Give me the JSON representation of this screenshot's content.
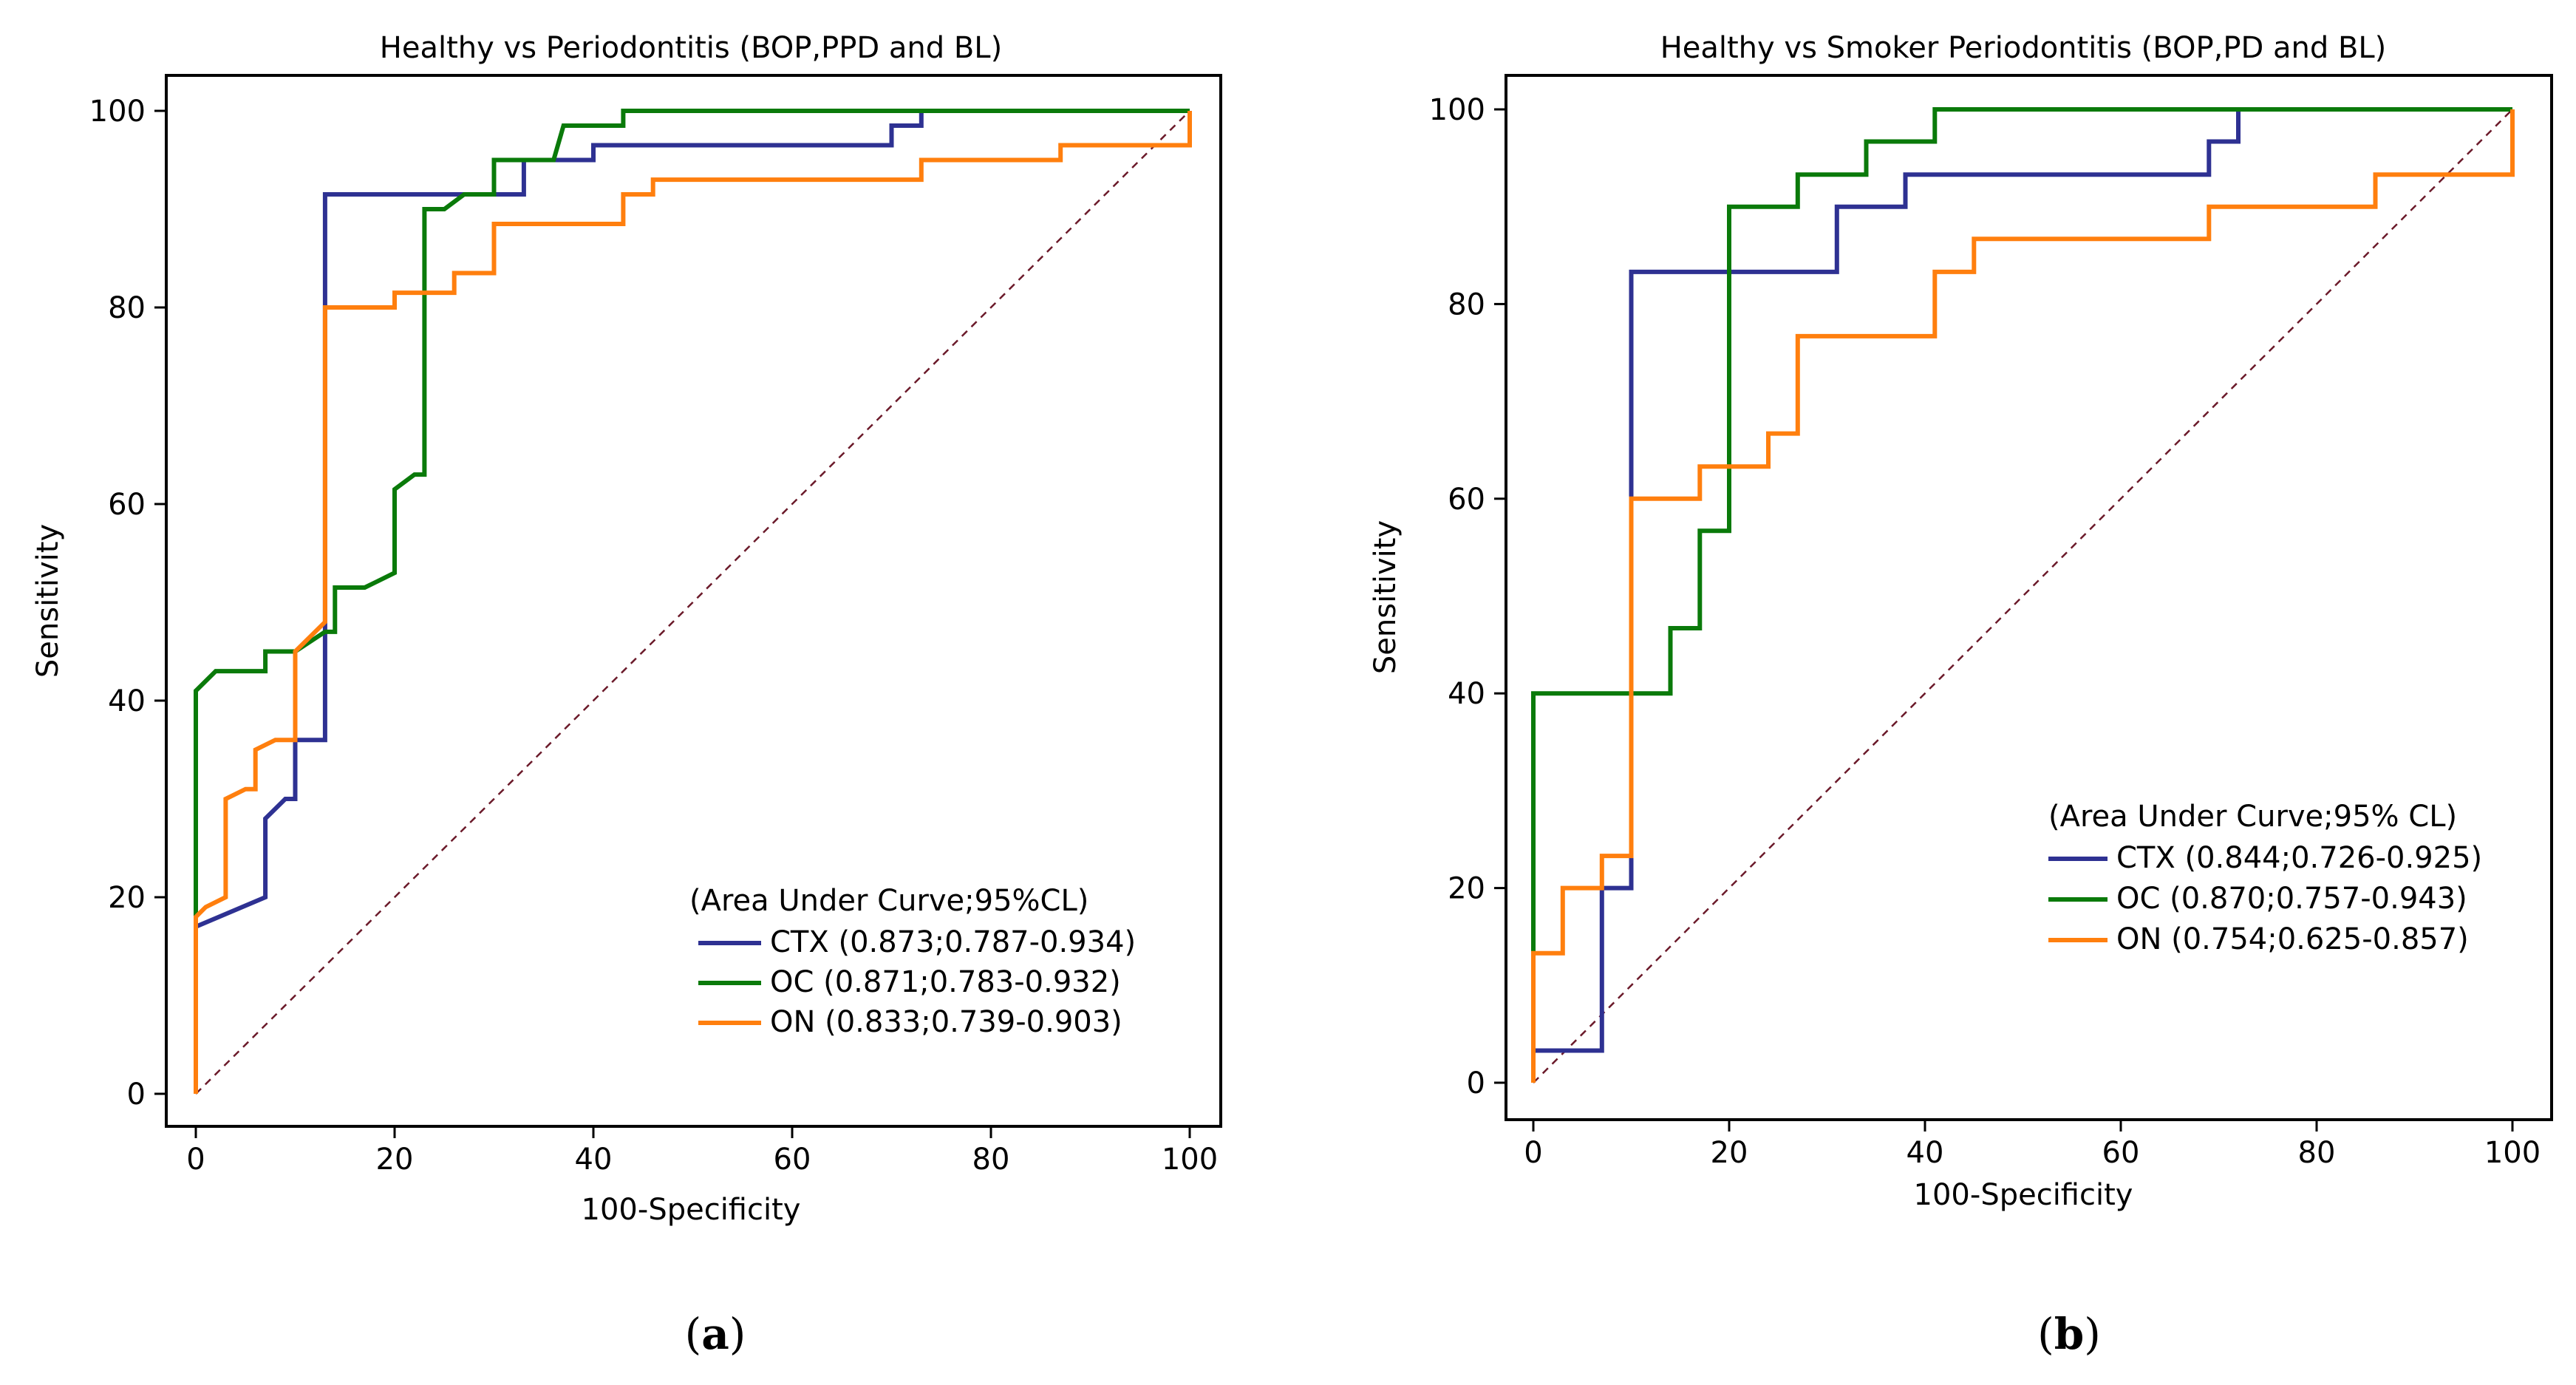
{
  "chart_data": [
    {
      "type": "line",
      "caption": {
        "open": "(",
        "letter": "a",
        "close": ")"
      },
      "title": "Healthy vs Periodontitis (BOP,PPD and BL)",
      "xlabel": "100-Specificity",
      "ylabel": "Sensitivity",
      "xlim": [
        0,
        100
      ],
      "ylim": [
        0,
        100
      ],
      "xticks": [
        "0",
        "20",
        "40",
        "60",
        "80",
        "100"
      ],
      "yticks": [
        "0",
        "20",
        "40",
        "60",
        "80",
        "100"
      ],
      "diagonal": true,
      "legend_title": "(Area Under Curve;95%CL)",
      "legend_position": "bottom-right",
      "series": [
        {
          "name": "CTX (0.873;0.787-0.934)",
          "color": "#2e3192",
          "points": [
            [
              0,
              16
            ],
            [
              0,
              17
            ],
            [
              7,
              20
            ],
            [
              7,
              28
            ],
            [
              9,
              30
            ],
            [
              10,
              30
            ],
            [
              10,
              36
            ],
            [
              13,
              36
            ],
            [
              13,
              91.5
            ],
            [
              22,
              91.5
            ],
            [
              33,
              91.5
            ],
            [
              33,
              95
            ],
            [
              40,
              95
            ],
            [
              40,
              96.5
            ],
            [
              70,
              96.5
            ],
            [
              70,
              98.5
            ],
            [
              73,
              98.5
            ],
            [
              73,
              100
            ],
            [
              100,
              100
            ]
          ]
        },
        {
          "name": "OC (0.871;0.783-0.932)",
          "color": "#0a7a0a",
          "points": [
            [
              0,
              0
            ],
            [
              0,
              41
            ],
            [
              2,
              43
            ],
            [
              7,
              43
            ],
            [
              7,
              45
            ],
            [
              10,
              45
            ],
            [
              13,
              47
            ],
            [
              14,
              47
            ],
            [
              14,
              51.5
            ],
            [
              17,
              51.5
            ],
            [
              20,
              53
            ],
            [
              20,
              61.5
            ],
            [
              22,
              63
            ],
            [
              23,
              63
            ],
            [
              23,
              90
            ],
            [
              25,
              90
            ],
            [
              27,
              91.5
            ],
            [
              30,
              91.5
            ],
            [
              30,
              95
            ],
            [
              36,
              95
            ],
            [
              37,
              98.5
            ],
            [
              43,
              98.5
            ],
            [
              43,
              100
            ],
            [
              100,
              100
            ]
          ]
        },
        {
          "name": "ON (0.833;0.739-0.903)",
          "color": "#ff7f0e",
          "points": [
            [
              0,
              0
            ],
            [
              0,
              18
            ],
            [
              1,
              19
            ],
            [
              3,
              20
            ],
            [
              3,
              30
            ],
            [
              5,
              31
            ],
            [
              6,
              31
            ],
            [
              6,
              35
            ],
            [
              8,
              36
            ],
            [
              10,
              36
            ],
            [
              10,
              45
            ],
            [
              13,
              48
            ],
            [
              13,
              80
            ],
            [
              20,
              80
            ],
            [
              20,
              81.5
            ],
            [
              26,
              81.5
            ],
            [
              26,
              83.5
            ],
            [
              30,
              83.5
            ],
            [
              30,
              88.5
            ],
            [
              43,
              88.5
            ],
            [
              43,
              91.5
            ],
            [
              46,
              91.5
            ],
            [
              46,
              93
            ],
            [
              73,
              93
            ],
            [
              73,
              95
            ],
            [
              87,
              95
            ],
            [
              87,
              96.5
            ],
            [
              100,
              96.5
            ],
            [
              100,
              100
            ]
          ]
        }
      ]
    },
    {
      "type": "line",
      "caption": {
        "open": "(",
        "letter": "b",
        "close": ")"
      },
      "title": "Healthy vs Smoker Periodontitis (BOP,PD and BL)",
      "xlabel": "100-Specificity",
      "ylabel": "Sensitivity",
      "xlim": [
        0,
        100
      ],
      "ylim": [
        0,
        100
      ],
      "xticks": [
        "0",
        "20",
        "40",
        "60",
        "80",
        "100"
      ],
      "yticks": [
        "0",
        "20",
        "40",
        "60",
        "80",
        "100"
      ],
      "diagonal": true,
      "legend_title": "(Area Under Curve;95% CL)",
      "legend_position": "center-right",
      "series": [
        {
          "name": "CTX (0.844;0.726-0.925)",
          "color": "#2e3192",
          "points": [
            [
              0,
              0
            ],
            [
              0,
              3.3
            ],
            [
              7,
              3.3
            ],
            [
              7,
              20
            ],
            [
              10,
              20
            ],
            [
              10,
              83.3
            ],
            [
              31,
              83.3
            ],
            [
              31,
              90
            ],
            [
              38,
              90
            ],
            [
              38,
              93.3
            ],
            [
              69,
              93.3
            ],
            [
              69,
              96.7
            ],
            [
              72,
              96.7
            ],
            [
              72,
              100
            ],
            [
              100,
              100
            ]
          ]
        },
        {
          "name": "OC (0.870;0.757-0.943)",
          "color": "#0a7a0a",
          "points": [
            [
              0,
              13.3
            ],
            [
              0,
              40
            ],
            [
              14,
              40
            ],
            [
              14,
              46.7
            ],
            [
              17,
              46.7
            ],
            [
              17,
              56.7
            ],
            [
              20,
              56.7
            ],
            [
              20,
              90
            ],
            [
              27,
              90
            ],
            [
              27,
              93.3
            ],
            [
              34,
              93.3
            ],
            [
              34,
              96.7
            ],
            [
              41,
              96.7
            ],
            [
              41,
              100
            ],
            [
              100,
              100
            ]
          ]
        },
        {
          "name": "ON (0.754;0.625-0.857)",
          "color": "#ff7f0e",
          "points": [
            [
              0,
              0
            ],
            [
              0,
              13.3
            ],
            [
              3,
              13.3
            ],
            [
              3,
              20
            ],
            [
              7,
              20
            ],
            [
              7,
              23.3
            ],
            [
              10,
              23.3
            ],
            [
              10,
              60
            ],
            [
              17,
              60
            ],
            [
              17,
              63.3
            ],
            [
              24,
              63.3
            ],
            [
              24,
              66.7
            ],
            [
              27,
              66.7
            ],
            [
              27,
              76.7
            ],
            [
              41,
              76.7
            ],
            [
              41,
              83.3
            ],
            [
              45,
              83.3
            ],
            [
              45,
              86.7
            ],
            [
              69,
              86.7
            ],
            [
              69,
              90
            ],
            [
              86,
              90
            ],
            [
              86,
              93.3
            ],
            [
              100,
              93.3
            ],
            [
              100,
              100
            ]
          ]
        }
      ]
    }
  ]
}
